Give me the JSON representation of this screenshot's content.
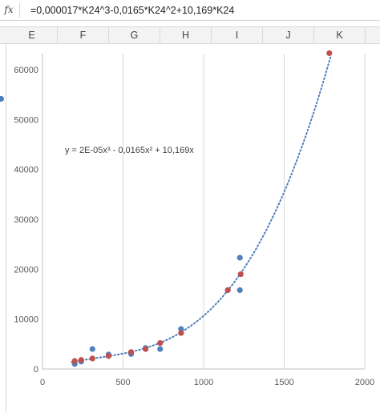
{
  "formula_bar": {
    "fx_label": "fx",
    "formula": "=0,000017*K24^3-0,0165*K24^2+10,169*K24"
  },
  "columns": [
    "E",
    "F",
    "G",
    "H",
    "I",
    "J",
    "K"
  ],
  "colors": {
    "series_1": "#4f81bd",
    "series_2": "#c0504d",
    "trendline": "#4f81bd",
    "gridline": "#d9d9d9"
  },
  "chart_data": {
    "type": "scatter",
    "title": "",
    "xlabel": "",
    "ylabel": "",
    "xlim": [
      0,
      2000
    ],
    "ylim": [
      0,
      60000
    ],
    "x_ticks": [
      "0",
      "500",
      "1000",
      "1500",
      "2000"
    ],
    "y_ticks": [
      "0",
      "10000",
      "20000",
      "30000",
      "40000",
      "50000",
      "60000"
    ],
    "grid": "vertical",
    "legend": "none",
    "series": [
      {
        "points": [
          [
            200,
            1000
          ],
          [
            240,
            1500
          ],
          [
            310,
            4000
          ],
          [
            410,
            2900
          ],
          [
            550,
            3000
          ],
          [
            640,
            4200
          ],
          [
            730,
            4000
          ],
          [
            860,
            8000
          ],
          [
            1150,
            15800
          ],
          [
            1225,
            15800
          ],
          [
            1225,
            22300
          ]
        ]
      },
      {
        "points": [
          [
            200,
            1600
          ],
          [
            240,
            1800
          ],
          [
            310,
            2100
          ],
          [
            410,
            2600
          ],
          [
            550,
            3400
          ],
          [
            640,
            4000
          ],
          [
            730,
            5200
          ],
          [
            860,
            7200
          ],
          [
            1150,
            15800
          ],
          [
            1230,
            19000
          ],
          [
            1780,
            63300
          ]
        ]
      }
    ],
    "trendline": {
      "style": "dotted",
      "equation": "y = 2E-05x³ - 0,0165x² + 10,169x",
      "coefficients": [
        1.7e-05,
        -0.0165,
        10.169,
        0
      ],
      "x_range": [
        180,
        1790
      ]
    }
  }
}
